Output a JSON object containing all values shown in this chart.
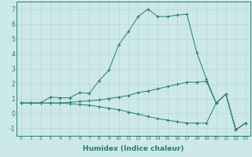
{
  "xlabel": "Humidex (Indice chaleur)",
  "background_color": "#cce8e8",
  "grid_color": "#b8d8d8",
  "line_color": "#2a7d6f",
  "line1_x": [
    0,
    1,
    2,
    3,
    4,
    5,
    6,
    7,
    8,
    9,
    10,
    11,
    12,
    13,
    14,
    15,
    16,
    17,
    18,
    19,
    20,
    21,
    22,
    23
  ],
  "line1_y": [
    0.7,
    0.7,
    0.7,
    1.1,
    1.05,
    1.05,
    1.4,
    1.35,
    2.2,
    2.9,
    4.6,
    5.5,
    6.5,
    7.0,
    6.5,
    6.5,
    6.6,
    6.65,
    4.1,
    2.3,
    0.7,
    1.3,
    -1.1,
    -0.65
  ],
  "line2_x": [
    0,
    1,
    2,
    3,
    4,
    5,
    6,
    7,
    8,
    9,
    10,
    11,
    12,
    13,
    14,
    15,
    16,
    17,
    18,
    19,
    20,
    21,
    22,
    23
  ],
  "line2_y": [
    0.7,
    0.7,
    0.7,
    0.7,
    0.7,
    0.75,
    0.8,
    0.85,
    0.9,
    1.0,
    1.1,
    1.2,
    1.4,
    1.5,
    1.65,
    1.8,
    1.95,
    2.1,
    2.1,
    2.15,
    0.7,
    1.3,
    -1.1,
    -0.65
  ],
  "line3_x": [
    0,
    1,
    2,
    3,
    4,
    5,
    6,
    7,
    8,
    9,
    10,
    11,
    12,
    13,
    14,
    15,
    16,
    17,
    18,
    19,
    20,
    21,
    22,
    23
  ],
  "line3_y": [
    0.7,
    0.7,
    0.7,
    0.7,
    0.7,
    0.65,
    0.6,
    0.55,
    0.45,
    0.35,
    0.25,
    0.1,
    -0.05,
    -0.2,
    -0.35,
    -0.45,
    -0.55,
    -0.65,
    -0.65,
    -0.65,
    0.7,
    1.3,
    -1.1,
    -0.65
  ],
  "xlim": [
    -0.5,
    23.5
  ],
  "ylim": [
    -1.5,
    7.5
  ],
  "xticks": [
    0,
    1,
    2,
    3,
    4,
    5,
    6,
    7,
    8,
    9,
    10,
    11,
    12,
    13,
    14,
    15,
    16,
    17,
    18,
    19,
    20,
    21,
    22,
    23
  ],
  "yticks": [
    -1,
    0,
    1,
    2,
    3,
    4,
    5,
    6,
    7
  ],
  "xlabel_fontsize": 6.5,
  "tick_fontsize_x": 4.5,
  "tick_fontsize_y": 5.5
}
